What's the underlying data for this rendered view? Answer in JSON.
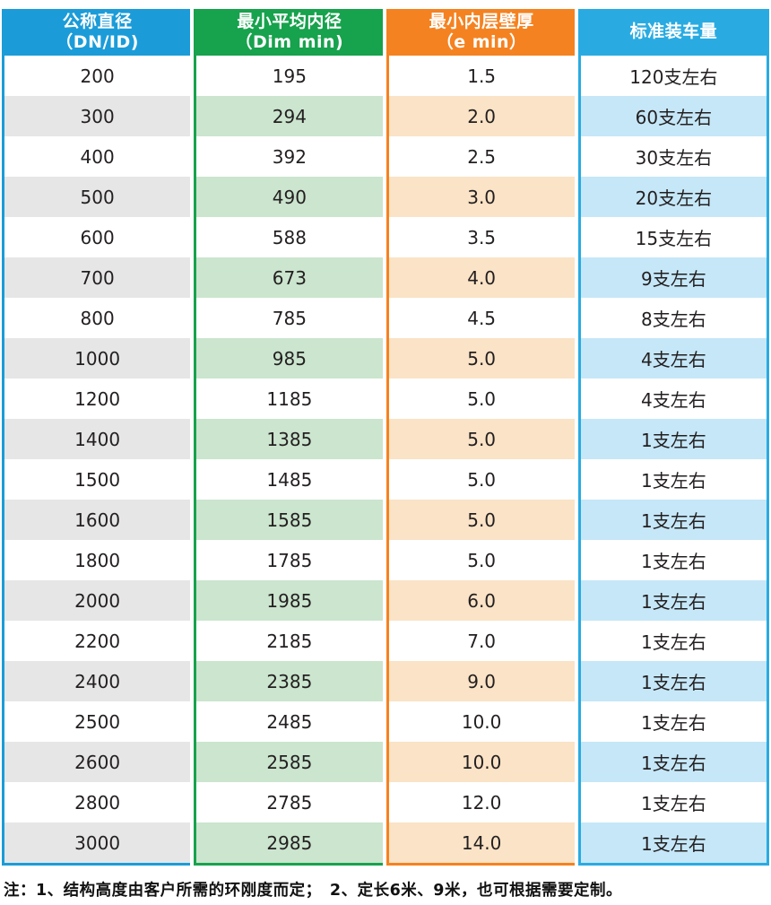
{
  "table": {
    "columns": [
      {
        "id": "dn",
        "header_line1": "公称直径",
        "header_line2": "（DN/ID)",
        "color": "#1B9CD8",
        "light": "#E6E6E7"
      },
      {
        "id": "dim_min",
        "header_line1": "最小平均内径",
        "header_line2": "（Dim min)",
        "color": "#17A24D",
        "light": "#CBE5CE"
      },
      {
        "id": "e_min",
        "header_line1": "最小内层壁厚",
        "header_line2": "（e min）",
        "color": "#F58220",
        "light": "#FAE3C6"
      },
      {
        "id": "loading",
        "header_line1": "标准装车量",
        "header_line2": "",
        "color": "#29ABE2",
        "light": "#C5E7F8"
      }
    ],
    "rows": [
      [
        "200",
        "195",
        "1.5",
        "120支左右"
      ],
      [
        "300",
        "294",
        "2.0",
        "60支左右"
      ],
      [
        "400",
        "392",
        "2.5",
        "30支左右"
      ],
      [
        "500",
        "490",
        "3.0",
        "20支左右"
      ],
      [
        "600",
        "588",
        "3.5",
        "15支左右"
      ],
      [
        "700",
        "673",
        "4.0",
        "9支左右"
      ],
      [
        "800",
        "785",
        "4.5",
        "8支左右"
      ],
      [
        "1000",
        "985",
        "5.0",
        "4支左右"
      ],
      [
        "1200",
        "1185",
        "5.0",
        "4支左右"
      ],
      [
        "1400",
        "1385",
        "5.0",
        "1支左右"
      ],
      [
        "1500",
        "1485",
        "5.0",
        "1支左右"
      ],
      [
        "1600",
        "1585",
        "5.0",
        "1支左右"
      ],
      [
        "1800",
        "1785",
        "5.0",
        "1支左右"
      ],
      [
        "2000",
        "1985",
        "6.0",
        "1支左右"
      ],
      [
        "2200",
        "2185",
        "7.0",
        "1支左右"
      ],
      [
        "2400",
        "2385",
        "9.0",
        "1支左右"
      ],
      [
        "2500",
        "2485",
        "10.0",
        "1支左右"
      ],
      [
        "2600",
        "2585",
        "10.0",
        "1支左右"
      ],
      [
        "2800",
        "2785",
        "12.0",
        "1支左右"
      ],
      [
        "3000",
        "2985",
        "14.0",
        "1支左右"
      ]
    ]
  },
  "note": "注：1、结构高度由客户所需的环刚度而定；　2、定长6米、9米，也可根据需要定制。"
}
